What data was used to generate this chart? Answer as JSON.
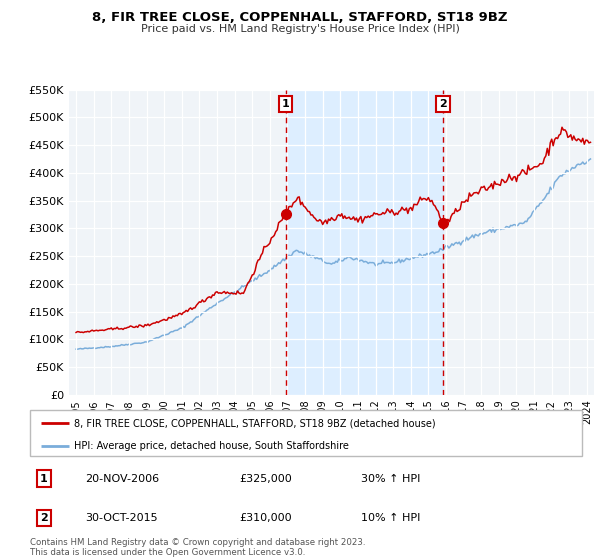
{
  "title": "8, FIR TREE CLOSE, COPPENHALL, STAFFORD, ST18 9BZ",
  "subtitle": "Price paid vs. HM Land Registry's House Price Index (HPI)",
  "red_label": "8, FIR TREE CLOSE, COPPENHALL, STAFFORD, ST18 9BZ (detached house)",
  "blue_label": "HPI: Average price, detached house, South Staffordshire",
  "sale1_date": "20-NOV-2006",
  "sale1_price": "£325,000",
  "sale1_hpi": "30% ↑ HPI",
  "sale2_date": "30-OCT-2015",
  "sale2_price": "£310,000",
  "sale2_hpi": "10% ↑ HPI",
  "footer": "Contains HM Land Registry data © Crown copyright and database right 2023.\nThis data is licensed under the Open Government Licence v3.0.",
  "ylim": [
    0,
    550000
  ],
  "yticks": [
    0,
    50000,
    100000,
    150000,
    200000,
    250000,
    300000,
    350000,
    400000,
    450000,
    500000,
    550000
  ],
  "red_color": "#cc0000",
  "blue_color": "#7aadda",
  "vline1_x": 2006.9,
  "vline2_x": 2015.83,
  "dot1_x": 2006.9,
  "dot1_y": 325000,
  "dot2_x": 2015.83,
  "dot2_y": 310000,
  "shade_color": "#ddeeff",
  "background_color": "#f0f4f8",
  "grid_color": "#ffffff",
  "xlim_left": 1994.6,
  "xlim_right": 2024.4
}
